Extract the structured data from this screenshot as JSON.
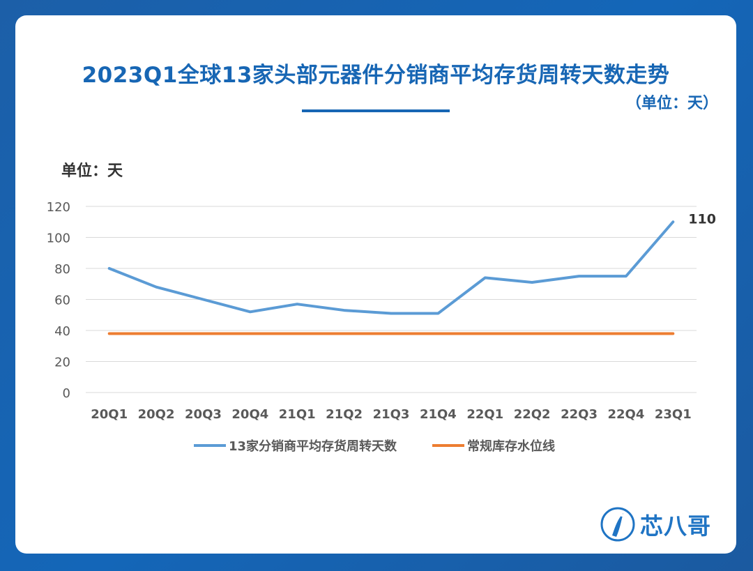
{
  "card": {
    "title": "2023Q1全球13家头部元器件分销商平均存货周转天数走势",
    "unit_label": "（单位：天）"
  },
  "chart_data": {
    "type": "line",
    "ylabel": "单位：天",
    "categories": [
      "20Q1",
      "20Q2",
      "20Q3",
      "20Q4",
      "21Q1",
      "21Q2",
      "21Q3",
      "21Q4",
      "22Q1",
      "22Q2",
      "22Q3",
      "22Q4",
      "23Q1"
    ],
    "ylim": [
      0,
      120
    ],
    "yticks": [
      0,
      20,
      40,
      60,
      80,
      100,
      120
    ],
    "grid": true,
    "legend_position": "bottom",
    "series": [
      {
        "name": "13家分销商平均存货周转天数",
        "color": "#5b9bd5",
        "values": [
          80,
          68,
          60,
          52,
          57,
          53,
          51,
          51,
          74,
          71,
          75,
          75,
          110
        ]
      },
      {
        "name": "常规库存水位线",
        "color": "#ed7d31",
        "values": [
          38,
          38,
          38,
          38,
          38,
          38,
          38,
          38,
          38,
          38,
          38,
          38,
          38
        ]
      }
    ],
    "annotations": [
      {
        "category": "23Q1",
        "series": 0,
        "text": "110"
      }
    ]
  },
  "brand": {
    "name": "芯八哥"
  }
}
